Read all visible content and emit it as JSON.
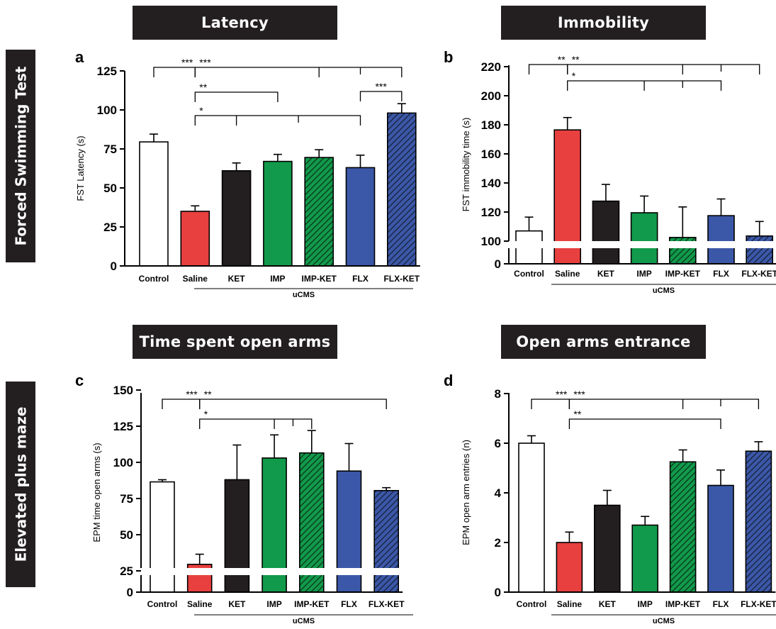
{
  "banners": {
    "latency": "Latency",
    "immobility": "Immobility",
    "time_open": "Time spent open arms",
    "open_entrance": "Open arms entrance"
  },
  "side_labels": {
    "fst": "Forced Swimming Test",
    "epm": "Elevated plus maze"
  },
  "colors": {
    "Control": "#ffffff",
    "Saline": "#e8403f",
    "KET": "#231f20",
    "IMP": "#119a4b",
    "IMP-KET": "#119a4b",
    "FLX": "#3b58a8",
    "FLX-KET": "#3b58a8"
  },
  "chart_data": [
    {
      "panel": "a",
      "type": "bar",
      "categories": [
        "Control",
        "Saline",
        "KET",
        "IMP",
        "IMP-KET",
        "FLX",
        "FLX-KET"
      ],
      "hatched": [
        "IMP-KET",
        "FLX-KET"
      ],
      "values": [
        79.5,
        35,
        61,
        67,
        69.5,
        63,
        98
      ],
      "errors": [
        5,
        3.5,
        5,
        4.5,
        5,
        8,
        6
      ],
      "ylabel": "FST Latency (s)",
      "group_label": "uCMS",
      "ylim": [
        0,
        125
      ],
      "yticks": [
        0,
        25,
        50,
        75,
        100,
        125
      ],
      "sig": [
        {
          "label": "***",
          "from": "Control",
          "to": "Saline"
        },
        {
          "label": "***",
          "from": "Saline",
          "to": [
            "IMP-KET",
            "FLX-KET"
          ]
        },
        {
          "label": "**",
          "from": "Saline",
          "to": "IMP"
        },
        {
          "label": "*",
          "from": "Saline",
          "to": [
            "KET",
            "FLX"
          ]
        },
        {
          "label": "***",
          "from": "FLX",
          "to": "FLX-KET"
        }
      ]
    },
    {
      "panel": "b",
      "type": "bar",
      "categories": [
        "Control",
        "Saline",
        "KET",
        "IMP",
        "IMP-KET",
        "FLX",
        "FLX-KET"
      ],
      "hatched": [
        "IMP-KET",
        "FLX-KET"
      ],
      "values": [
        107,
        176.5,
        127.5,
        119.5,
        102.5,
        117.5,
        103.5
      ],
      "errors": [
        9.5,
        8.5,
        11.5,
        11.5,
        21,
        11.5,
        10
      ],
      "ylabel": "FST immobility time (s)",
      "group_label": "uCMS",
      "ylim": [
        100,
        220
      ],
      "yticks": [
        0,
        100,
        120,
        140,
        160,
        180,
        200,
        220
      ],
      "axis_break": true,
      "sig": [
        {
          "label": "**",
          "from": "Control",
          "to": "Saline"
        },
        {
          "label": "**",
          "from": "Saline",
          "to": [
            "IMP-KET",
            "FLX-KET"
          ]
        },
        {
          "label": "*",
          "from": "Saline",
          "to": [
            "IMP",
            "FLX"
          ]
        }
      ]
    },
    {
      "panel": "c",
      "type": "bar",
      "categories": [
        "Control",
        "Saline",
        "KET",
        "IMP",
        "IMP-KET",
        "FLX",
        "FLX-KET"
      ],
      "hatched": [
        "IMP-KET",
        "FLX-KET"
      ],
      "values": [
        86.5,
        29.5,
        88,
        103,
        106.5,
        94,
        80.5
      ],
      "errors": [
        1.5,
        7,
        24,
        16,
        15.5,
        19,
        2
      ],
      "ylabel": "EPM time open arms (s)",
      "group_label": "uCMS",
      "ylim": [
        25,
        150
      ],
      "yticks": [
        0,
        25,
        50,
        75,
        100,
        125,
        150
      ],
      "axis_break": true,
      "sig": [
        {
          "label": "***",
          "from": "Control",
          "to": "Saline"
        },
        {
          "label": "**",
          "from": "Saline",
          "to": "FLX-KET"
        },
        {
          "label": "*",
          "from": "Saline",
          "to": [
            "IMP",
            "IMP-KET"
          ]
        }
      ]
    },
    {
      "panel": "d",
      "type": "bar",
      "categories": [
        "Control",
        "Saline",
        "KET",
        "IMP",
        "IMP-KET",
        "FLX",
        "FLX-KET"
      ],
      "hatched": [
        "IMP-KET",
        "FLX-KET"
      ],
      "values": [
        6,
        2,
        3.5,
        2.7,
        5.25,
        4.3,
        5.68
      ],
      "errors": [
        0.3,
        0.42,
        0.6,
        0.35,
        0.48,
        0.62,
        0.38
      ],
      "ylabel": "EPM open arm entries (n)",
      "group_label": "uCMS",
      "ylim": [
        0,
        8
      ],
      "yticks": [
        0,
        2,
        4,
        6,
        8
      ],
      "sig": [
        {
          "label": "***",
          "from": "Control",
          "to": "Saline"
        },
        {
          "label": "***",
          "from": "Saline",
          "to": [
            "IMP-KET",
            "FLX-KET"
          ]
        },
        {
          "label": "**",
          "from": "Saline",
          "to": "FLX"
        }
      ]
    }
  ]
}
